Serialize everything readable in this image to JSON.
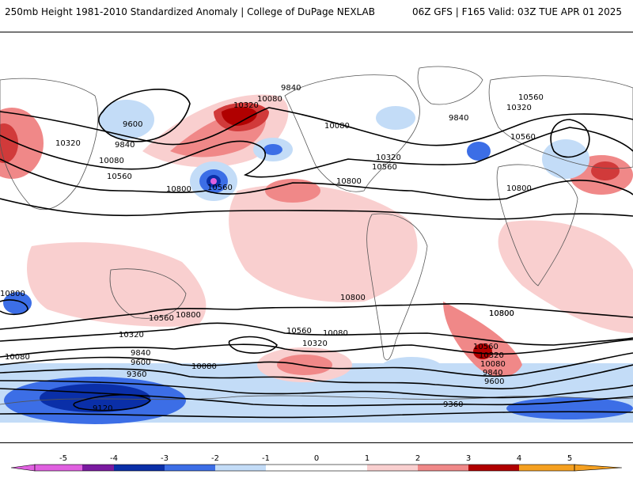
{
  "header": {
    "title": "250mb Height 1981-2010 Standardized Anomaly | College of DuPage NEXLAB",
    "run_info": "06Z GFS | F165 Valid: 03Z TUE APR 01 2025"
  },
  "colors": {
    "neg5": "#e060e0",
    "neg4": "#7a1aa0",
    "neg3": "#0a2fa8",
    "neg2": "#3c6ee6",
    "neg1": "#c3dcf7",
    "zero": "#ffffff",
    "pos1": "#f9cfcf",
    "pos2": "#f08888",
    "pos3": "#d13a3a",
    "pos4": "#b00000",
    "pos5": "#f5a020",
    "contour": "#000000",
    "land_outline": "#555555"
  },
  "contour_labels": [
    {
      "text": "9840"
    },
    {
      "text": "10080"
    },
    {
      "text": "9600"
    },
    {
      "text": "10320"
    },
    {
      "text": "9840"
    },
    {
      "text": "10080"
    },
    {
      "text": "10560"
    },
    {
      "text": "10320"
    },
    {
      "text": "10560"
    },
    {
      "text": "10800"
    },
    {
      "text": "10080"
    },
    {
      "text": "10320"
    },
    {
      "text": "10560"
    },
    {
      "text": "10800"
    },
    {
      "text": "10560"
    },
    {
      "text": "10800"
    },
    {
      "text": "9840"
    },
    {
      "text": "10320"
    },
    {
      "text": "10560"
    },
    {
      "text": "10800"
    },
    {
      "text": "10800"
    },
    {
      "text": "10560"
    },
    {
      "text": "10800"
    },
    {
      "text": "10800"
    },
    {
      "text": "10320"
    },
    {
      "text": "10080"
    },
    {
      "text": "10560"
    },
    {
      "text": "10320"
    },
    {
      "text": "10080"
    },
    {
      "text": "10800"
    },
    {
      "text": "10560"
    },
    {
      "text": "10320"
    },
    {
      "text": "10080"
    },
    {
      "text": "9840"
    },
    {
      "text": "9600"
    },
    {
      "text": "9840"
    },
    {
      "text": "9600"
    },
    {
      "text": "10080"
    },
    {
      "text": "9360"
    },
    {
      "text": "9120"
    },
    {
      "text": "9360"
    }
  ],
  "colorbar": {
    "ticks": [
      "-5",
      "-4",
      "-3",
      "-2",
      "-1",
      "0",
      "1",
      "2",
      "3",
      "4",
      "5"
    ]
  }
}
